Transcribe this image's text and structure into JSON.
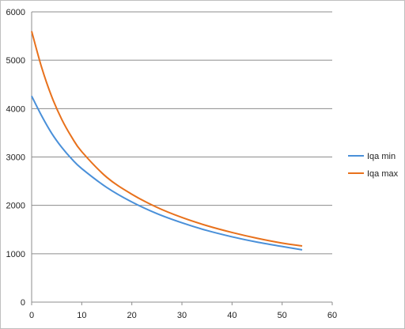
{
  "chart_data": {
    "type": "line",
    "title": "",
    "xlabel": "",
    "ylabel": "",
    "xlim": [
      0,
      60
    ],
    "ylim": [
      0,
      6000
    ],
    "x_ticks": [
      0,
      10,
      20,
      30,
      40,
      50,
      60
    ],
    "y_ticks": [
      0,
      1000,
      2000,
      3000,
      4000,
      5000,
      6000
    ],
    "grid": "horizontal",
    "legend_position": "right",
    "series": [
      {
        "name": "Iqa min",
        "color": "#4a90d9",
        "x": [
          0,
          2,
          4,
          6,
          8,
          10,
          15,
          20,
          25,
          30,
          35,
          40,
          45,
          50,
          54
        ],
        "values": [
          4260,
          3850,
          3490,
          3200,
          2960,
          2760,
          2370,
          2070,
          1830,
          1640,
          1480,
          1350,
          1240,
          1150,
          1080
        ]
      },
      {
        "name": "Iqa max",
        "color": "#e8711c",
        "x": [
          0,
          2,
          4,
          6,
          8,
          10,
          15,
          20,
          25,
          30,
          35,
          40,
          45,
          50,
          54
        ],
        "values": [
          5600,
          4850,
          4250,
          3780,
          3410,
          3110,
          2580,
          2230,
          1960,
          1750,
          1580,
          1440,
          1320,
          1220,
          1160
        ]
      }
    ]
  }
}
